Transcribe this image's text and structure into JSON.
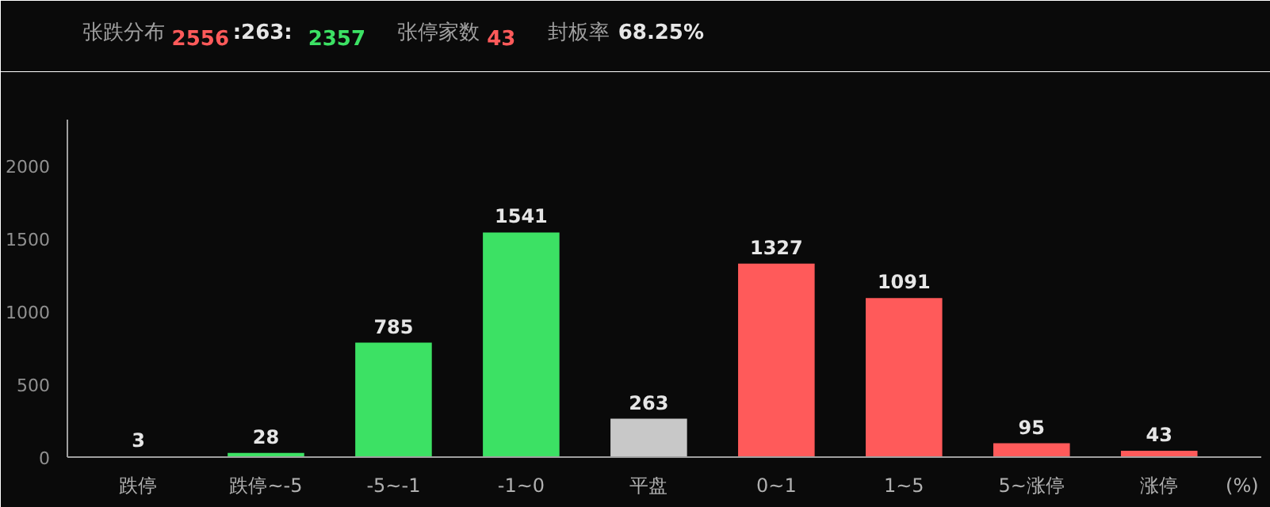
{
  "chart_data": {
    "type": "bar",
    "title": "张跌分布",
    "annotations": [
      "2556",
      ":263:",
      "2357",
      "张停家数",
      "43",
      "封板率",
      "68.25%"
    ],
    "xlabel": "(%)",
    "categories": [
      "跌停",
      "跌停~-5",
      "-5~-1",
      "-1~0",
      "平盘",
      "0~1",
      "1~5",
      "5~涨停",
      "涨停"
    ],
    "values": [
      3,
      28,
      785,
      1541,
      263,
      1327,
      1091,
      95,
      43
    ],
    "colors": [
      "#3ce164",
      "#3ce164",
      "#3ce164",
      "#3ce164",
      "#c8c8c8",
      "#ff5a5a",
      "#ff5a5a",
      "#ff5a5a",
      "#ff5a5a"
    ],
    "data_labels": true,
    "ylim": [
      0,
      2315
    ],
    "yticks": [
      0,
      500,
      1000,
      1500,
      2000
    ],
    "grid": false
  }
}
